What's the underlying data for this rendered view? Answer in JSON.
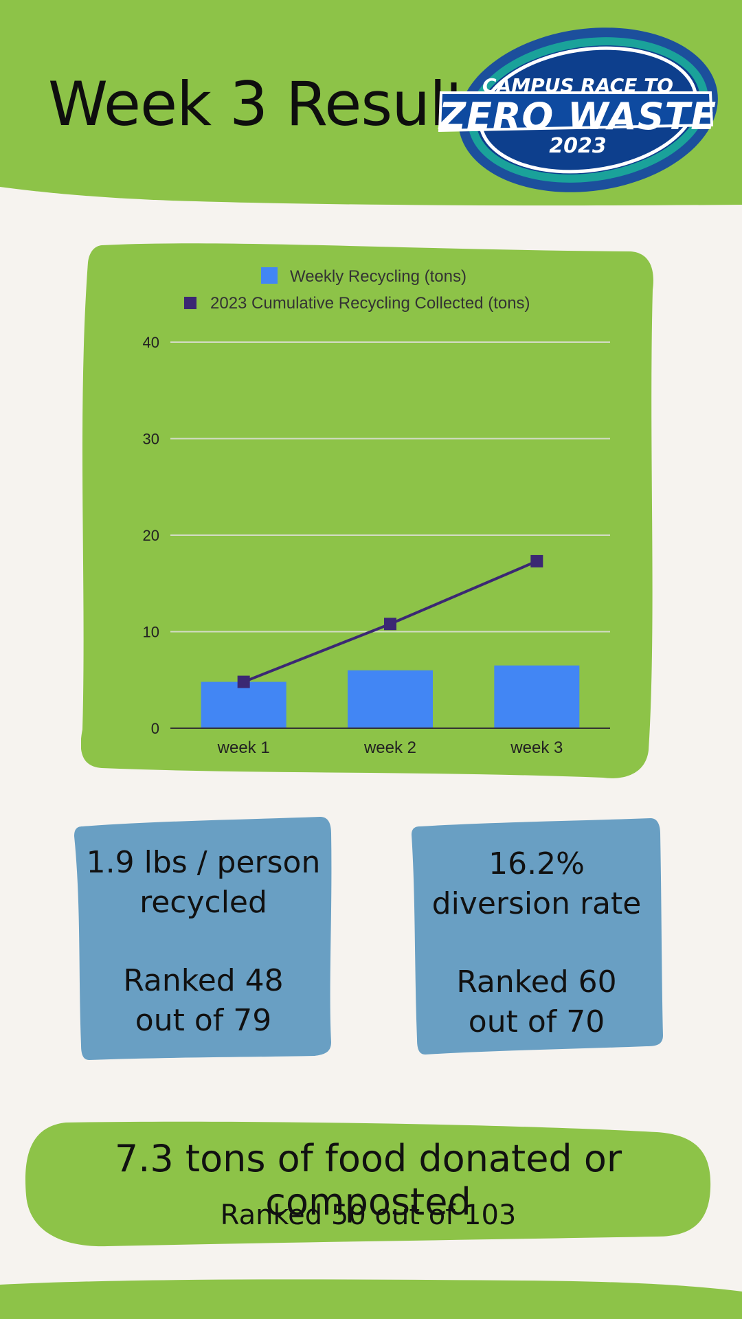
{
  "header": {
    "title": "Week 3 Results",
    "logo": {
      "line1": "CAMPUS RACE TO",
      "line2": "ZERO WASTE",
      "line3": "2023",
      "icon": "recycle-icon",
      "colors": {
        "outer": "#1c4f9c",
        "teal": "#1aa29a",
        "inner": "#0d3f8d"
      }
    }
  },
  "colors": {
    "green": "#8dc348",
    "blue_card": "#699fc3",
    "bar_blue": "#4286f4",
    "line_purple": "#3b2873",
    "background": "#f6f3ef"
  },
  "chart_data": {
    "type": "bar",
    "categories": [
      "week 1",
      "week 2",
      "week 3"
    ],
    "series": [
      {
        "name": "Weekly Recycling (tons)",
        "type": "bar",
        "values": [
          4.8,
          6.0,
          6.5
        ]
      },
      {
        "name": "2023 Cumulative Recycling Collected (tons)",
        "type": "line",
        "values": [
          4.8,
          10.8,
          17.3
        ]
      }
    ],
    "yticks": [
      "0",
      "10",
      "20",
      "30",
      "40"
    ],
    "ylim": [
      0,
      40
    ],
    "grid": true,
    "legend": "top"
  },
  "cards": [
    {
      "line1": "1.9 lbs / person",
      "line2": "recycled",
      "line3": "Ranked 48",
      "line4": "out of 79"
    },
    {
      "line1": "16.2%",
      "line2": "diversion rate",
      "line3": "Ranked 60",
      "line4": "out of 70"
    }
  ],
  "food": {
    "main": "7.3 tons of food donated or composted",
    "sub": "Ranked 50 out of 103"
  }
}
